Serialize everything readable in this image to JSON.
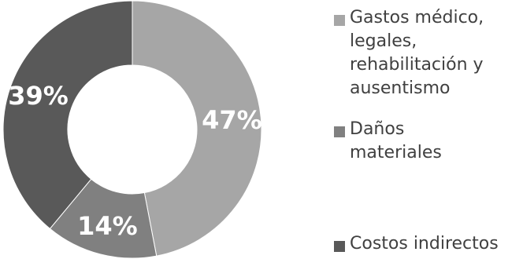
{
  "chart_data": {
    "type": "pie",
    "donut": true,
    "categories": [
      "Gastos médico, legales, rehabilitación y ausentismo",
      "Daños materiales",
      "Costos indirectos"
    ],
    "values": [
      47,
      14,
      39
    ],
    "data_labels": [
      "47%",
      "14%",
      "39%"
    ],
    "colors": [
      "#a6a6a6",
      "#808080",
      "#595959"
    ],
    "legend_position": "right"
  }
}
